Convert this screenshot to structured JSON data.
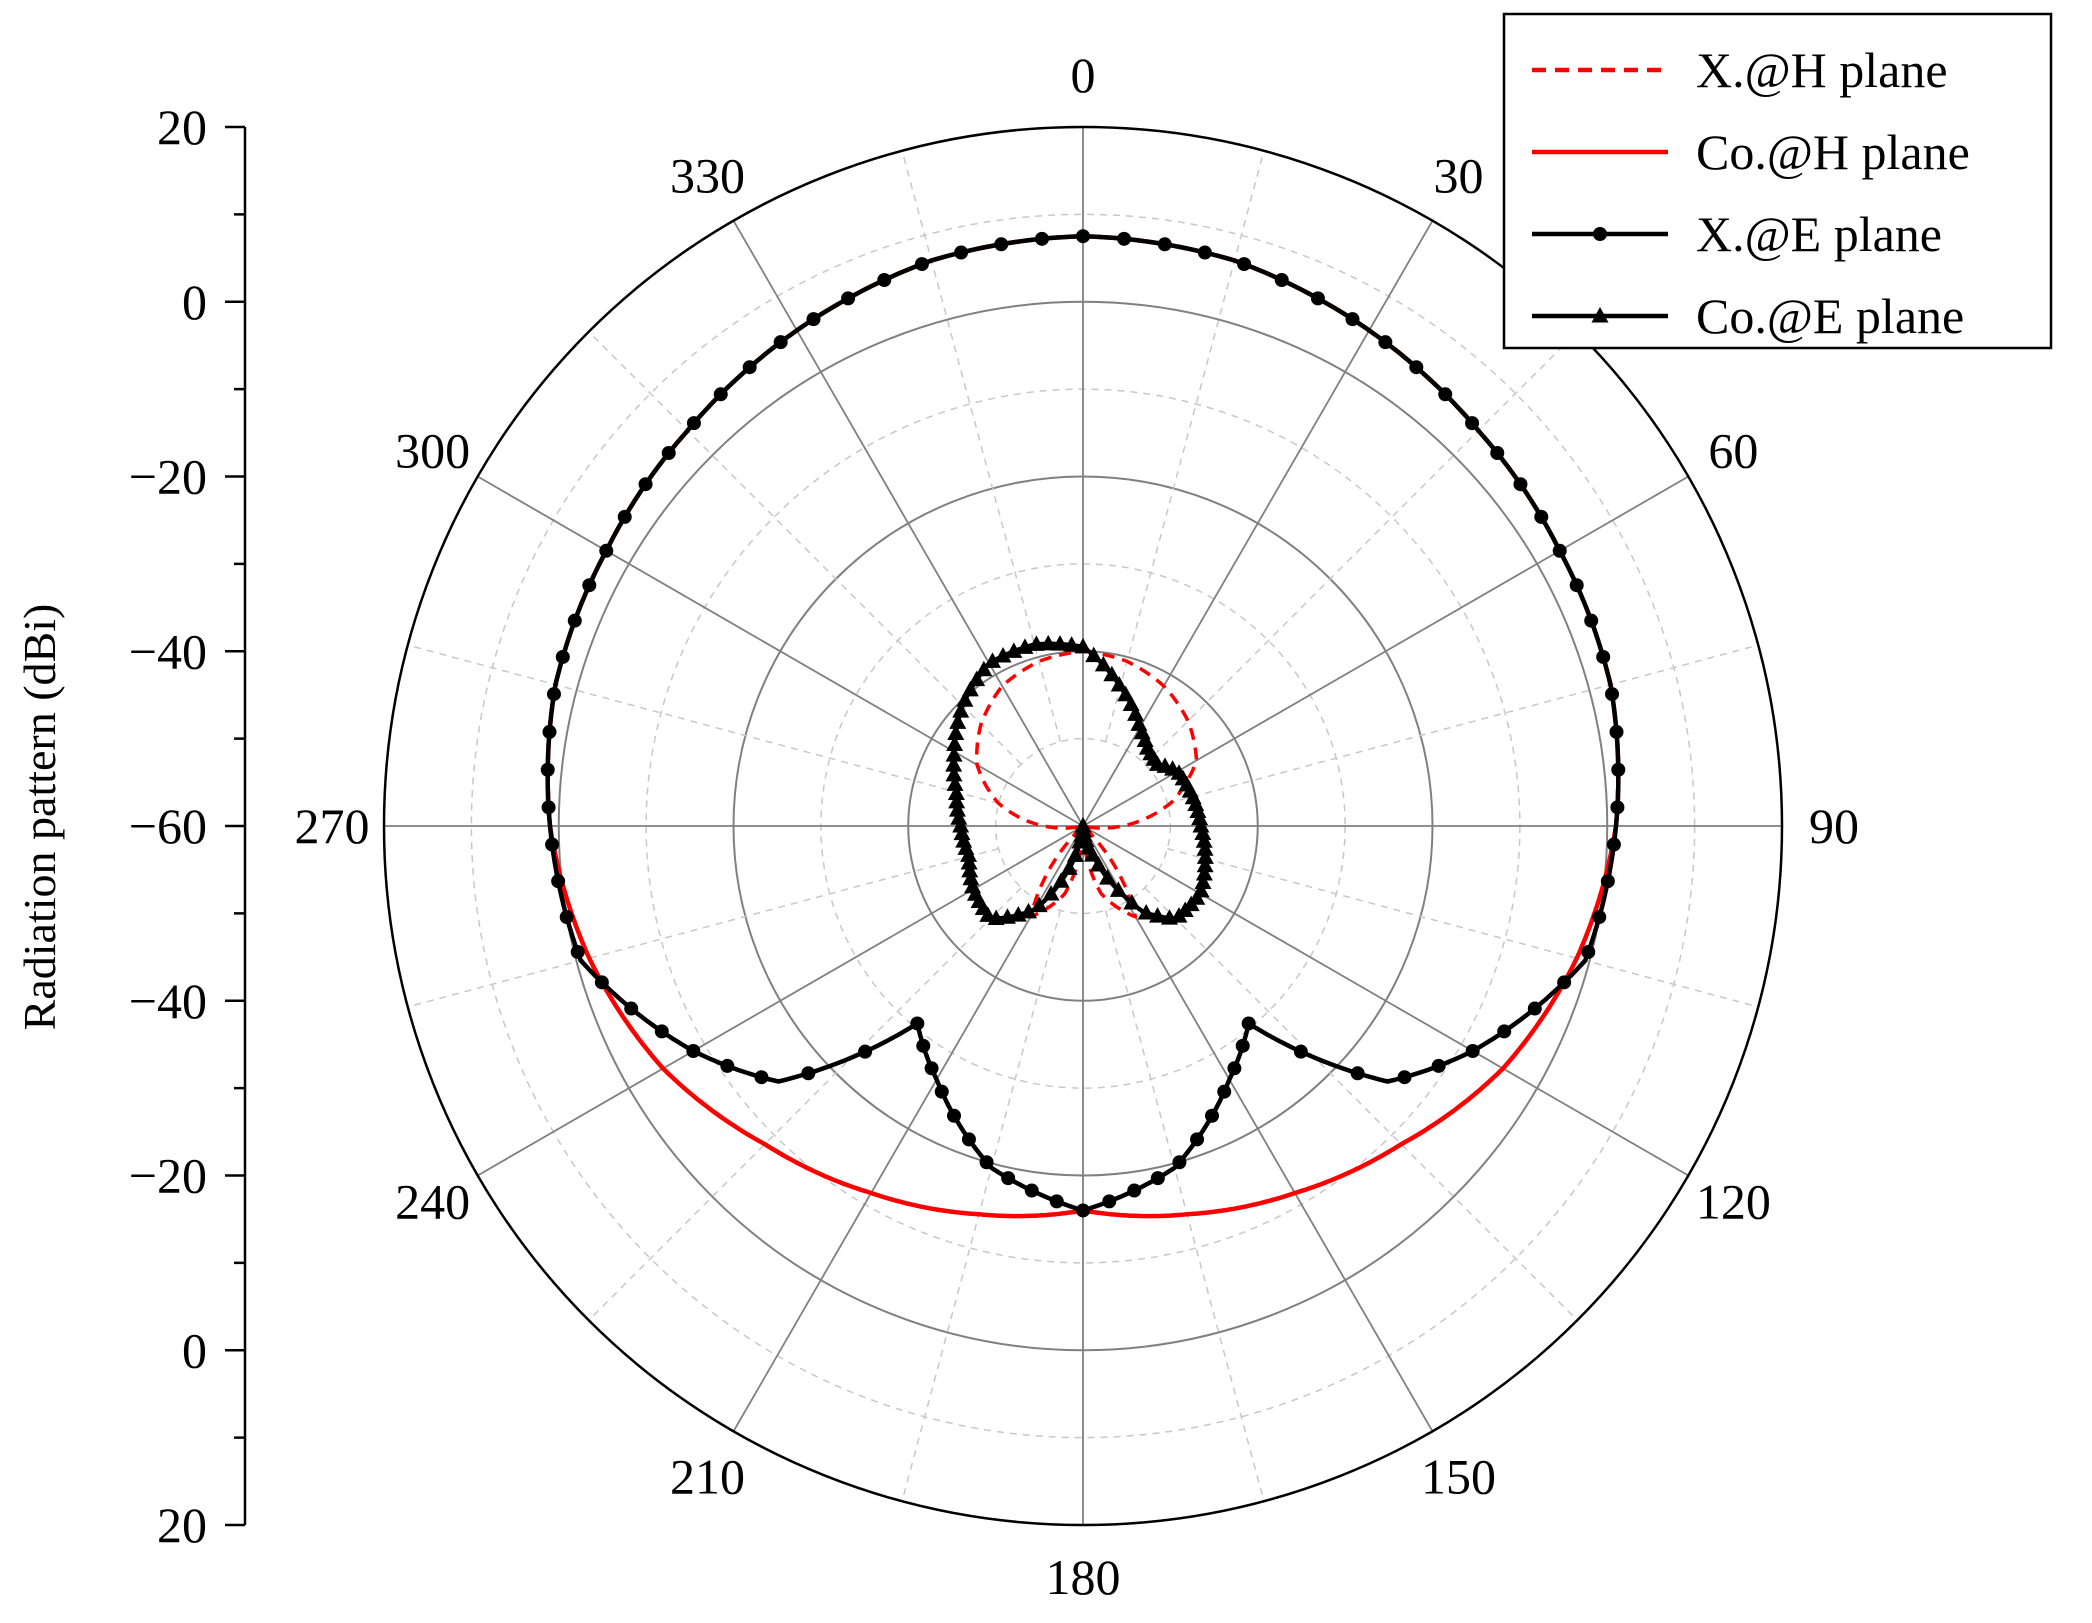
{
  "chart_data": {
    "type": "polar-line",
    "ylabel": "Radiation pattern (dBi)",
    "radial_range_dB": [
      -60,
      20
    ],
    "left_axis_ticks": [
      "20",
      "0",
      "−20",
      "−40",
      "−60",
      "−40",
      "−20",
      "0",
      "20"
    ],
    "angle_ticks": [
      "0",
      "30",
      "60",
      "90",
      "120",
      "150",
      "180",
      "210",
      "240",
      "270",
      "300",
      "330"
    ],
    "angle_step_major": 30,
    "angle_step_minor": 15,
    "grid": true,
    "legend_position": "top-right",
    "series": [
      {
        "name": "X.@H plane",
        "color": "#ff0000",
        "dash": "dashed",
        "marker": "none",
        "angles": [
          0,
          15,
          30,
          45,
          60,
          75,
          90,
          105,
          120,
          135,
          150,
          165,
          180,
          195,
          210,
          225,
          240,
          255,
          270,
          285,
          300,
          315,
          330,
          345,
          360
        ],
        "values": [
          -40,
          -40.5,
          -41.5,
          -43,
          -45,
          -49.5,
          -55.5,
          -61,
          -62,
          -59,
          -48,
          -52,
          -60,
          -52,
          -48,
          -59,
          -62,
          -61,
          -55.5,
          -50,
          -46,
          -43.5,
          -41.5,
          -40.5,
          -40
        ]
      },
      {
        "name": "Co.@H plane",
        "color": "#ff0000",
        "dash": "solid",
        "marker": "none",
        "angles": [
          0,
          15,
          30,
          45,
          60,
          75,
          90,
          105,
          120,
          135,
          150,
          165,
          180,
          195,
          210,
          225,
          240,
          255,
          270,
          285,
          300,
          315,
          330,
          345,
          360
        ],
        "values": [
          7.5,
          7,
          5.5,
          4,
          3,
          2.5,
          1,
          -1.5,
          -4.5,
          -8.5,
          -11.5,
          -14,
          -16,
          -14,
          -11.5,
          -8.5,
          -4.5,
          -1.5,
          1,
          2.5,
          3,
          4,
          5.5,
          7,
          7.5
        ]
      },
      {
        "name": "X.@E plane",
        "color": "#000000",
        "dash": "solid",
        "marker": "circle",
        "angles": [
          0,
          15,
          30,
          45,
          60,
          75,
          90,
          105,
          120,
          130,
          140,
          150,
          165,
          180,
          195,
          210,
          220,
          230,
          240,
          255,
          270,
          285,
          300,
          315,
          330,
          345,
          360
        ],
        "values": [
          7.5,
          7,
          5.5,
          4,
          3,
          2.5,
          1,
          -0.5,
          -8.5,
          -14.5,
          -30.5,
          -26.5,
          -19.5,
          -16,
          -19.5,
          -26.5,
          -30.5,
          -14.5,
          -8.5,
          -0.5,
          1,
          2.5,
          3,
          4,
          5.5,
          7,
          7.5
        ]
      },
      {
        "name": "Co.@E plane",
        "color": "#000000",
        "dash": "solid",
        "marker": "triangle",
        "angles": [
          0,
          15,
          30,
          40,
          50,
          60,
          75,
          90,
          105,
          120,
          135,
          145,
          150,
          160,
          170,
          180,
          190,
          200,
          210,
          225,
          240,
          255,
          270,
          285,
          300,
          315,
          330,
          345,
          360
        ],
        "values": [
          -39.5,
          -43.5,
          -47,
          -48.5,
          -49,
          -47.5,
          -47,
          -46.5,
          -45.5,
          -44.5,
          -45,
          -48,
          -51,
          -56,
          -58.5,
          -60,
          -58.5,
          -54,
          -49,
          -45,
          -45.5,
          -46.5,
          -46,
          -45,
          -43,
          -40.5,
          -38.5,
          -38.5,
          -39.5
        ]
      }
    ]
  }
}
